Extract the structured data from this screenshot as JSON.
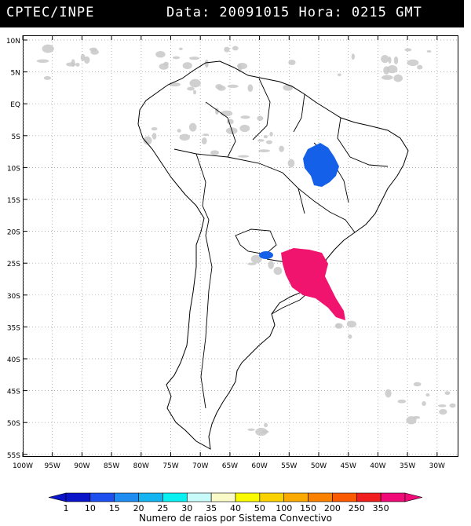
{
  "header": {
    "source": "CPTEC/INPE",
    "datetime": "Data: 20091015 Hora: 0215 GMT"
  },
  "map": {
    "region": "South America",
    "lat_labels": [
      "10N",
      "5N",
      "EQ",
      "5S",
      "10S",
      "15S",
      "20S",
      "25S",
      "30S",
      "35S",
      "40S",
      "45S",
      "50S",
      "55S"
    ],
    "lon_labels": [
      "100W",
      "95W",
      "90W",
      "85W",
      "80W",
      "75W",
      "70W",
      "65W",
      "60W",
      "55W",
      "50W",
      "45W",
      "40W",
      "35W",
      "30W"
    ],
    "colors": {
      "clouds": "#c8c8c8",
      "system_blue": "#1560e8",
      "system_magenta": "#f0146e",
      "border": "#000000",
      "grid": "#999999"
    }
  },
  "legend": {
    "title": "Numero de raios por Sistema Convectivo",
    "ticks": [
      "1",
      "10",
      "15",
      "20",
      "25",
      "30",
      "35",
      "40",
      "50",
      "100",
      "150",
      "200",
      "250",
      "350"
    ],
    "colors": [
      "#0a14c8",
      "#1e50f0",
      "#1e8cf0",
      "#14b4f0",
      "#0af0f0",
      "#c8fafa",
      "#fafac8",
      "#fafa00",
      "#fad200",
      "#faaa00",
      "#fa8200",
      "#fa5a00",
      "#f01e1e",
      "#f00a78"
    ]
  }
}
